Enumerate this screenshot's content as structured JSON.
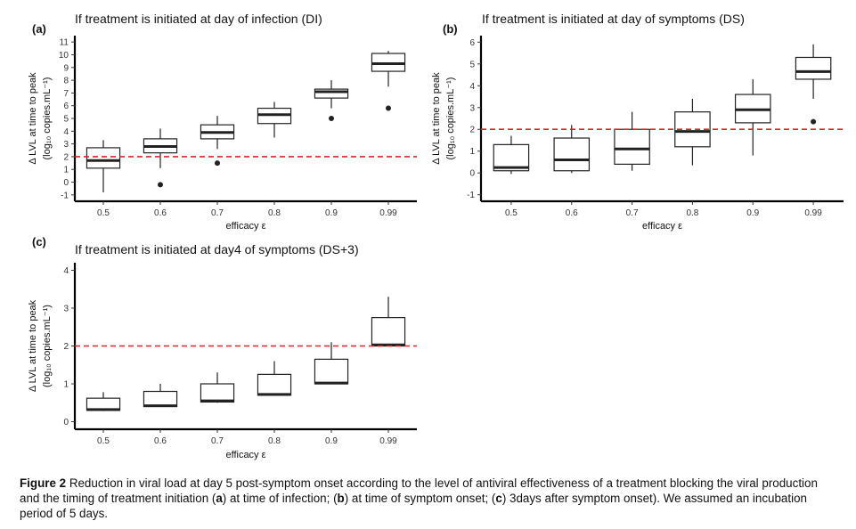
{
  "figure": {
    "caption": {
      "label": "Figure 2",
      "text": " Reduction in viral load at day 5 post-symptom onset according to the level of antiviral effectiveness of a treatment blocking the viral production and the timing of treatment initiation (",
      "a_label": "a",
      "a_text": ") at time of infection; (",
      "b_label": "b",
      "b_text": ") at time of symptom onset; (",
      "c_label": "c",
      "c_text": ") 3days after symptom onset). We assumed an incubation period of 5 days."
    },
    "colors": {
      "box": "#222222",
      "median": "#222222",
      "threshold": "#d62728"
    }
  },
  "chart_data": [
    {
      "panel": "(a)",
      "type": "box",
      "title": "If treatment is initiated at day of infection (DI)",
      "xlabel": "efficacy ε",
      "ylabel_main": "Δ LVL at time to peak",
      "ylabel_unit": "(log₁₀ copies.mL⁻¹)",
      "categories": [
        "0.5",
        "0.6",
        "0.7",
        "0.8",
        "0.9",
        "0.99"
      ],
      "yticks": [
        "-1",
        "0",
        "1",
        "2",
        "3",
        "4",
        "5",
        "6",
        "7",
        "8",
        "9",
        "10",
        "11"
      ],
      "ylim": [
        -1.5,
        11.5
      ],
      "threshold": 2,
      "boxes": [
        {
          "whisker_low": -0.8,
          "q1": 1.1,
          "median": 1.7,
          "q3": 2.7,
          "whisker_high": 3.3,
          "outliers": []
        },
        {
          "whisker_low": 1.1,
          "q1": 2.3,
          "median": 2.8,
          "q3": 3.4,
          "whisker_high": 4.2,
          "outliers": [
            -0.2
          ]
        },
        {
          "whisker_low": 2.6,
          "q1": 3.4,
          "median": 3.9,
          "q3": 4.5,
          "whisker_high": 5.2,
          "outliers": [
            1.5
          ]
        },
        {
          "whisker_low": 3.5,
          "q1": 4.6,
          "median": 5.3,
          "q3": 5.8,
          "whisker_high": 6.3,
          "outliers": []
        },
        {
          "whisker_low": 5.8,
          "q1": 6.6,
          "median": 7.1,
          "q3": 7.3,
          "whisker_high": 8.0,
          "outliers": [
            5.0
          ]
        },
        {
          "whisker_low": 7.5,
          "q1": 8.7,
          "median": 9.3,
          "q3": 10.1,
          "whisker_high": 10.3,
          "outliers": [
            5.8
          ]
        }
      ]
    },
    {
      "panel": "(b)",
      "type": "box",
      "title": "If treatment is initiated at day of symptoms (DS)",
      "xlabel": "efficacy ε",
      "ylabel_main": "Δ LVL at time to peak",
      "ylabel_unit": "(log₁₀ copies.mL⁻¹)",
      "categories": [
        "0.5",
        "0.6",
        "0.7",
        "0.8",
        "0.9",
        "0.99"
      ],
      "yticks": [
        "-1",
        "0",
        "1",
        "2",
        "3",
        "4",
        "5",
        "6"
      ],
      "ylim": [
        -1.3,
        6.3
      ],
      "threshold": 2,
      "boxes": [
        {
          "whisker_low": -0.05,
          "q1": 0.1,
          "median": 0.25,
          "q3": 1.3,
          "whisker_high": 1.7,
          "outliers": []
        },
        {
          "whisker_low": 0.0,
          "q1": 0.1,
          "median": 0.6,
          "q3": 1.6,
          "whisker_high": 2.2,
          "outliers": []
        },
        {
          "whisker_low": 0.1,
          "q1": 0.4,
          "median": 1.1,
          "q3": 2.0,
          "whisker_high": 2.8,
          "outliers": []
        },
        {
          "whisker_low": 0.35,
          "q1": 1.2,
          "median": 1.9,
          "q3": 2.8,
          "whisker_high": 3.4,
          "outliers": []
        },
        {
          "whisker_low": 0.8,
          "q1": 2.3,
          "median": 2.9,
          "q3": 3.6,
          "whisker_high": 4.3,
          "outliers": []
        },
        {
          "whisker_low": 3.4,
          "q1": 4.3,
          "median": 4.65,
          "q3": 5.3,
          "whisker_high": 5.9,
          "outliers": [
            2.35
          ]
        }
      ]
    },
    {
      "panel": "(c)",
      "type": "box",
      "title": "If treatment is initiated at day4 of symptoms (DS+3)",
      "xlabel": "efficacy ε",
      "ylabel_main": "Δ LVL at time to peak",
      "ylabel_unit": "(log₁₀ copies.mL⁻¹)",
      "categories": [
        "0.5",
        "0.6",
        "0.7",
        "0.8",
        "0.9",
        "0.99"
      ],
      "yticks": [
        "0",
        "1",
        "2",
        "3",
        "4"
      ],
      "ylim": [
        -0.2,
        4.2
      ],
      "threshold": 2,
      "boxes": [
        {
          "whisker_low": 0.28,
          "q1": 0.3,
          "median": 0.32,
          "q3": 0.62,
          "whisker_high": 0.78,
          "outliers": []
        },
        {
          "whisker_low": 0.4,
          "q1": 0.4,
          "median": 0.42,
          "q3": 0.8,
          "whisker_high": 1.0,
          "outliers": []
        },
        {
          "whisker_low": 0.5,
          "q1": 0.52,
          "median": 0.55,
          "q3": 1.0,
          "whisker_high": 1.3,
          "outliers": []
        },
        {
          "whisker_low": 0.7,
          "q1": 0.7,
          "median": 0.72,
          "q3": 1.25,
          "whisker_high": 1.6,
          "outliers": []
        },
        {
          "whisker_low": 1.0,
          "q1": 1.0,
          "median": 1.02,
          "q3": 1.65,
          "whisker_high": 2.1,
          "outliers": []
        },
        {
          "whisker_low": 2.0,
          "q1": 2.0,
          "median": 2.03,
          "q3": 2.75,
          "whisker_high": 3.3,
          "outliers": []
        }
      ]
    }
  ]
}
